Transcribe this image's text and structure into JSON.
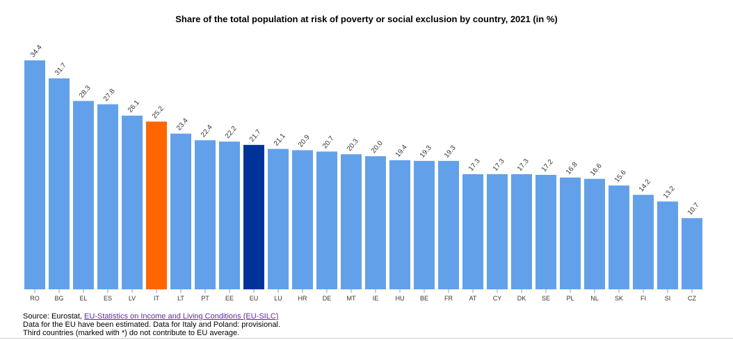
{
  "chart_data": {
    "type": "bar",
    "title": "Share of the total population at risk of poverty or social exclusion by country, 2021 (in %)",
    "xlabel": "",
    "ylabel": "",
    "ylim": [
      0,
      34.4
    ],
    "grid": false,
    "categories": [
      "RO",
      "BG",
      "EL",
      "ES",
      "LV",
      "IT",
      "LT",
      "PT",
      "EE",
      "EU",
      "LU",
      "HR",
      "DE",
      "MT",
      "IE",
      "HU",
      "BE",
      "FR",
      "AT",
      "CY",
      "DK",
      "SE",
      "PL",
      "NL",
      "SK",
      "FI",
      "SI",
      "CZ"
    ],
    "values": [
      34.4,
      31.7,
      28.3,
      27.8,
      26.1,
      25.2,
      23.4,
      22.4,
      22.2,
      21.7,
      21.1,
      20.9,
      20.7,
      20.3,
      20.0,
      19.4,
      19.3,
      19.3,
      17.3,
      17.3,
      17.3,
      17.2,
      16.8,
      16.6,
      15.6,
      14.2,
      13.2,
      10.7
    ],
    "labels": [
      "34.4",
      "31.7",
      "28.3",
      "27.8",
      "26.1",
      "25.2",
      "23.4",
      "22.4",
      "22.2",
      "21.7",
      "21.1",
      "20.9",
      "20.7",
      "20.3",
      "20.0",
      "19.4",
      "19.3",
      "19.3",
      "17.3",
      "17.3",
      "17.3",
      "17.2",
      "16.8",
      "16.6",
      "15.6",
      "14.2",
      "13.2",
      "10.7"
    ],
    "colors": {
      "default": "#62a1ea",
      "IT": "#ff6600",
      "EU": "#003399"
    }
  },
  "notes": {
    "source_prefix": "Source: Eurostat, ",
    "source_link": "EU-Statistics on Income and Living Conditions (EU-SILC)",
    "line2": "Data for the EU have been estimated. Data for Italy and Poland: provisional.",
    "line3": "Third countries (marked with *) do not contribute to EU average."
  }
}
